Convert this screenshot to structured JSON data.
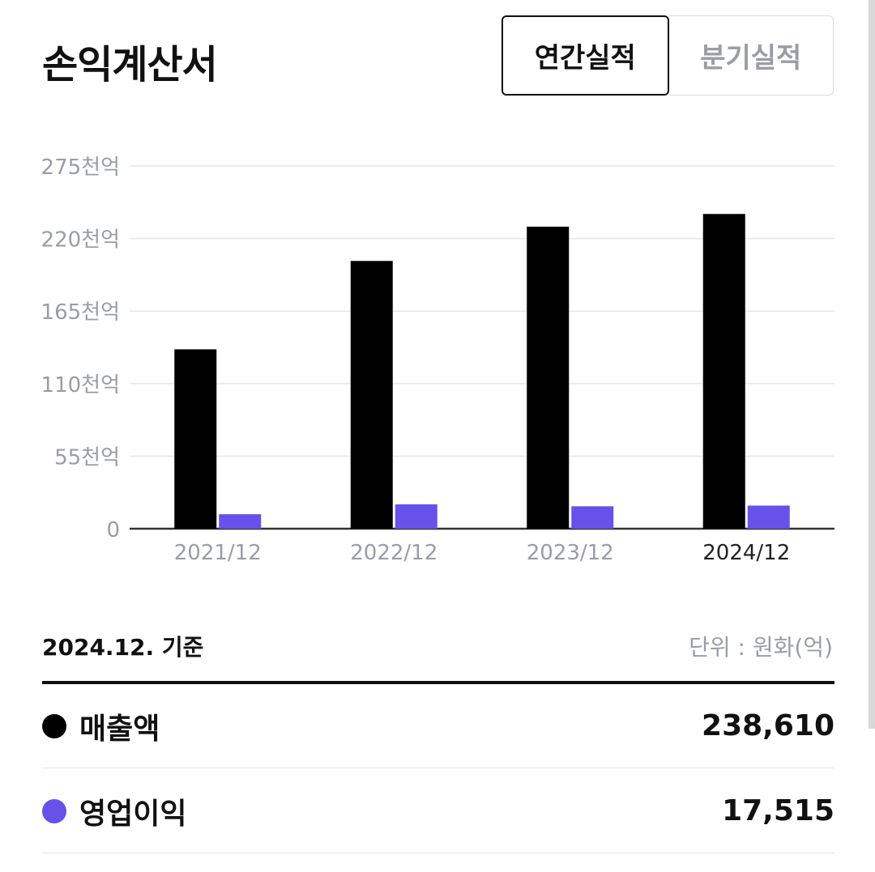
{
  "header": {
    "title": "손익계산서",
    "tabs": [
      {
        "label": "연간실적",
        "active": true
      },
      {
        "label": "분기실적",
        "active": false
      }
    ]
  },
  "colors": {
    "revenue": "#000000",
    "operating_income": "#6652e8",
    "axis_text": "#9a9da5",
    "grid": "#e6e6e6"
  },
  "chart_data": {
    "type": "bar",
    "categories": [
      "2021/12",
      "2022/12",
      "2023/12",
      "2024/12"
    ],
    "highlighted_category": "2024/12",
    "series": [
      {
        "name": "매출액",
        "values": [
          136000,
          203000,
          229000,
          238610
        ]
      },
      {
        "name": "영업이익",
        "values": [
          11000,
          18500,
          17000,
          17515
        ]
      }
    ],
    "yticks": [
      {
        "value": 0,
        "label": "0"
      },
      {
        "value": 55000,
        "label": "55천억"
      },
      {
        "value": 110000,
        "label": "110천억"
      },
      {
        "value": 165000,
        "label": "165천억"
      },
      {
        "value": 220000,
        "label": "220천억"
      },
      {
        "value": 275000,
        "label": "275천억"
      }
    ],
    "ylim": [
      0,
      275000
    ],
    "grid": true
  },
  "summary": {
    "basis": "2024.12. 기준",
    "unit": "단위 : 원화(억)",
    "rows": [
      {
        "label": "매출액",
        "value": "238,610",
        "color": "#000000"
      },
      {
        "label": "영업이익",
        "value": "17,515",
        "color": "#6652e8"
      }
    ]
  }
}
